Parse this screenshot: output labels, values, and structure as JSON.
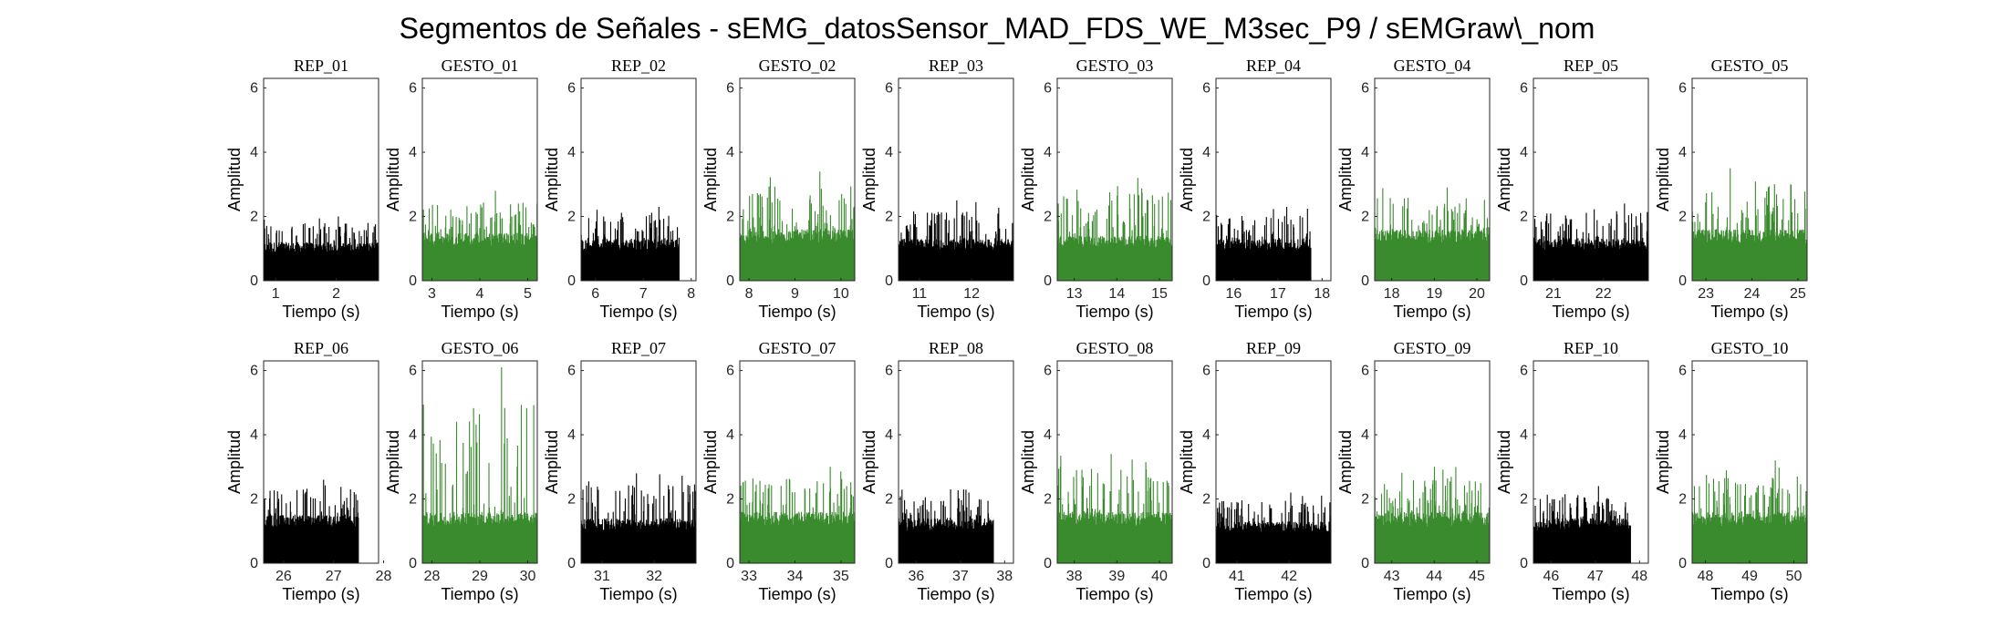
{
  "figure": {
    "title": "Segmentos de Señales - sEMG_datosSensor_MAD_FDS_WE_M3sec_P9 / sEMGraw\\_nom"
  },
  "colors": {
    "rep": "#000000",
    "gesto": "#3a8a2e"
  },
  "chart_data": [
    {
      "type": "area",
      "title": "REP_01",
      "xlabel": "Tiempo (s)",
      "ylabel": "Amplitud",
      "xlim": [
        0.8,
        2.7
      ],
      "ylim": [
        0,
        6.3
      ],
      "xticks": [
        1,
        2
      ],
      "yticks": [
        0,
        2,
        4,
        6
      ],
      "data_x_range": [
        0.8,
        2.7
      ],
      "mean": 1.2,
      "peak": 2.0,
      "color": "black"
    },
    {
      "type": "area",
      "title": "GESTO_01",
      "xlabel": "Tiempo (s)",
      "ylabel": "Amplitud",
      "xlim": [
        2.8,
        5.2
      ],
      "ylim": [
        0,
        6.3
      ],
      "xticks": [
        3,
        4,
        5
      ],
      "yticks": [
        0,
        2,
        4,
        6
      ],
      "data_x_range": [
        2.8,
        5.2
      ],
      "mean": 1.5,
      "peak": 2.8,
      "color": "green"
    },
    {
      "type": "area",
      "title": "REP_02",
      "xlabel": "Tiempo (s)",
      "ylabel": "Amplitud",
      "xlim": [
        5.7,
        8.1
      ],
      "ylim": [
        0,
        6.3
      ],
      "xticks": [
        6,
        7,
        8
      ],
      "yticks": [
        0,
        2,
        4,
        6
      ],
      "data_x_range": [
        5.7,
        7.75
      ],
      "mean": 1.3,
      "peak": 2.3,
      "color": "black"
    },
    {
      "type": "area",
      "title": "GESTO_02",
      "xlabel": "Tiempo (s)",
      "ylabel": "Amplitud",
      "xlim": [
        7.8,
        10.3
      ],
      "ylim": [
        0,
        6.3
      ],
      "xticks": [
        8,
        9,
        10
      ],
      "yticks": [
        0,
        2,
        4,
        6
      ],
      "data_x_range": [
        7.8,
        10.3
      ],
      "mean": 1.6,
      "peak": 3.4,
      "color": "green"
    },
    {
      "type": "area",
      "title": "REP_03",
      "xlabel": "Tiempo (s)",
      "ylabel": "Amplitud",
      "xlim": [
        10.6,
        12.8
      ],
      "ylim": [
        0,
        6.3
      ],
      "xticks": [
        11,
        12
      ],
      "yticks": [
        0,
        2,
        4,
        6
      ],
      "data_x_range": [
        10.6,
        12.8
      ],
      "mean": 1.3,
      "peak": 2.5,
      "color": "black"
    },
    {
      "type": "area",
      "title": "GESTO_03",
      "xlabel": "Tiempo (s)",
      "ylabel": "Amplitud",
      "xlim": [
        12.6,
        15.3
      ],
      "ylim": [
        0,
        6.3
      ],
      "xticks": [
        13,
        14,
        15
      ],
      "yticks": [
        0,
        2,
        4,
        6
      ],
      "data_x_range": [
        12.6,
        15.3
      ],
      "mean": 1.4,
      "peak": 3.2,
      "color": "green"
    },
    {
      "type": "area",
      "title": "REP_04",
      "xlabel": "Tiempo (s)",
      "ylabel": "Amplitud",
      "xlim": [
        15.6,
        18.2
      ],
      "ylim": [
        0,
        6.3
      ],
      "xticks": [
        16,
        17,
        18
      ],
      "yticks": [
        0,
        2,
        4,
        6
      ],
      "data_x_range": [
        15.6,
        17.75
      ],
      "mean": 1.3,
      "peak": 2.3,
      "color": "black"
    },
    {
      "type": "area",
      "title": "GESTO_04",
      "xlabel": "Tiempo (s)",
      "ylabel": "Amplitud",
      "xlim": [
        17.6,
        20.3
      ],
      "ylim": [
        0,
        6.3
      ],
      "xticks": [
        18,
        19,
        20
      ],
      "yticks": [
        0,
        2,
        4,
        6
      ],
      "data_x_range": [
        17.6,
        20.3
      ],
      "mean": 1.6,
      "peak": 2.9,
      "color": "green"
    },
    {
      "type": "area",
      "title": "REP_05",
      "xlabel": "Tiempo (s)",
      "ylabel": "Amplitud",
      "xlim": [
        20.6,
        22.9
      ],
      "ylim": [
        0,
        6.3
      ],
      "xticks": [
        21,
        22
      ],
      "yticks": [
        0,
        2,
        4,
        6
      ],
      "data_x_range": [
        20.6,
        22.9
      ],
      "mean": 1.3,
      "peak": 2.4,
      "color": "black"
    },
    {
      "type": "area",
      "title": "GESTO_05",
      "xlabel": "Tiempo (s)",
      "ylabel": "Amplitud",
      "xlim": [
        22.7,
        25.2
      ],
      "ylim": [
        0,
        6.3
      ],
      "xticks": [
        23,
        24,
        25
      ],
      "yticks": [
        0,
        2,
        4,
        6
      ],
      "data_x_range": [
        22.7,
        25.2
      ],
      "mean": 1.6,
      "peak": 3.5,
      "color": "green"
    },
    {
      "type": "area",
      "title": "REP_06",
      "xlabel": "Tiempo (s)",
      "ylabel": "Amplitud",
      "xlim": [
        25.6,
        27.9
      ],
      "ylim": [
        0,
        6.3
      ],
      "xticks": [
        26,
        27,
        28
      ],
      "yticks": [
        0,
        2,
        4,
        6
      ],
      "data_x_range": [
        25.6,
        27.5
      ],
      "mean": 1.5,
      "peak": 2.6,
      "color": "black"
    },
    {
      "type": "area",
      "title": "GESTO_06",
      "xlabel": "Tiempo (s)",
      "ylabel": "Amplitud",
      "xlim": [
        27.8,
        30.2
      ],
      "ylim": [
        0,
        6.3
      ],
      "xticks": [
        28,
        29,
        30
      ],
      "yticks": [
        0,
        2,
        4,
        6
      ],
      "data_x_range": [
        27.8,
        30.2
      ],
      "mean": 1.6,
      "peak": 6.1,
      "color": "green"
    },
    {
      "type": "area",
      "title": "REP_07",
      "xlabel": "Tiempo (s)",
      "ylabel": "Amplitud",
      "xlim": [
        30.6,
        32.8
      ],
      "ylim": [
        0,
        6.3
      ],
      "xticks": [
        31,
        32
      ],
      "yticks": [
        0,
        2,
        4,
        6
      ],
      "data_x_range": [
        30.6,
        32.8
      ],
      "mean": 1.4,
      "peak": 2.8,
      "color": "black"
    },
    {
      "type": "area",
      "title": "GESTO_07",
      "xlabel": "Tiempo (s)",
      "ylabel": "Amplitud",
      "xlim": [
        32.8,
        35.3
      ],
      "ylim": [
        0,
        6.3
      ],
      "xticks": [
        33,
        34,
        35
      ],
      "yticks": [
        0,
        2,
        4,
        6
      ],
      "data_x_range": [
        32.8,
        35.3
      ],
      "mean": 1.6,
      "peak": 3.0,
      "color": "green"
    },
    {
      "type": "area",
      "title": "REP_08",
      "xlabel": "Tiempo (s)",
      "ylabel": "Amplitud",
      "xlim": [
        35.6,
        38.2
      ],
      "ylim": [
        0,
        6.3
      ],
      "xticks": [
        36,
        37,
        38
      ],
      "yticks": [
        0,
        2,
        4,
        6
      ],
      "data_x_range": [
        35.6,
        37.75
      ],
      "mean": 1.4,
      "peak": 2.3,
      "color": "black"
    },
    {
      "type": "area",
      "title": "GESTO_08",
      "xlabel": "Tiempo (s)",
      "ylabel": "Amplitud",
      "xlim": [
        37.6,
        40.3
      ],
      "ylim": [
        0,
        6.3
      ],
      "xticks": [
        38,
        39,
        40
      ],
      "yticks": [
        0,
        2,
        4,
        6
      ],
      "data_x_range": [
        37.6,
        40.3
      ],
      "mean": 1.6,
      "peak": 3.4,
      "color": "green"
    },
    {
      "type": "area",
      "title": "REP_09",
      "xlabel": "Tiempo (s)",
      "ylabel": "Amplitud",
      "xlim": [
        40.6,
        42.8
      ],
      "ylim": [
        0,
        6.3
      ],
      "xticks": [
        41,
        42
      ],
      "yticks": [
        0,
        2,
        4,
        6
      ],
      "data_x_range": [
        40.6,
        42.8
      ],
      "mean": 1.3,
      "peak": 2.2,
      "color": "black"
    },
    {
      "type": "area",
      "title": "GESTO_09",
      "xlabel": "Tiempo (s)",
      "ylabel": "Amplitud",
      "xlim": [
        42.6,
        45.3
      ],
      "ylim": [
        0,
        6.3
      ],
      "xticks": [
        43,
        44,
        45
      ],
      "yticks": [
        0,
        2,
        4,
        6
      ],
      "data_x_range": [
        42.6,
        45.3
      ],
      "mean": 1.6,
      "peak": 3.0,
      "color": "green"
    },
    {
      "type": "area",
      "title": "REP_10",
      "xlabel": "Tiempo (s)",
      "ylabel": "Amplitud",
      "xlim": [
        45.6,
        48.2
      ],
      "ylim": [
        0,
        6.3
      ],
      "xticks": [
        46,
        47,
        48
      ],
      "yticks": [
        0,
        2,
        4,
        6
      ],
      "data_x_range": [
        45.6,
        47.8
      ],
      "mean": 1.4,
      "peak": 2.4,
      "color": "black"
    },
    {
      "type": "area",
      "title": "GESTO_10",
      "xlabel": "Tiempo (s)",
      "ylabel": "Amplitud",
      "xlim": [
        47.7,
        50.3
      ],
      "ylim": [
        0,
        6.3
      ],
      "xticks": [
        48,
        49,
        50
      ],
      "yticks": [
        0,
        2,
        4,
        6
      ],
      "data_x_range": [
        47.7,
        50.3
      ],
      "mean": 1.6,
      "peak": 3.2,
      "color": "green"
    }
  ]
}
